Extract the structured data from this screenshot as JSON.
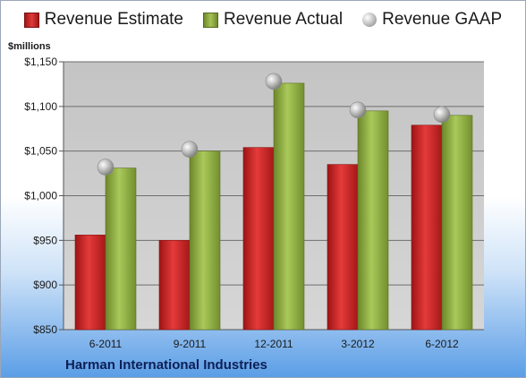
{
  "chart_data": {
    "type": "bar",
    "title": "",
    "units_label": "$millions",
    "company": "Harman International Industries",
    "categories": [
      "6-2011",
      "9-2011",
      "12-2011",
      "3-2012",
      "6-2012"
    ],
    "series": [
      {
        "name": "Revenue Estimate",
        "type": "bar",
        "values": [
          956,
          950,
          1054,
          1035,
          1079
        ]
      },
      {
        "name": "Revenue Actual",
        "type": "bar",
        "values": [
          1031,
          1050,
          1126,
          1095,
          1090
        ]
      },
      {
        "name": "Revenue GAAP",
        "type": "marker",
        "values": [
          1032,
          1052,
          1128,
          1096,
          1091
        ]
      }
    ],
    "ylim": [
      850,
      1150
    ],
    "yticks": [
      850,
      900,
      950,
      1000,
      1050,
      1100,
      1150
    ],
    "ytick_labels": [
      "$850",
      "$900",
      "$950",
      "$1,000",
      "$1,050",
      "$1,100",
      "$1,150"
    ],
    "legend_position": "top",
    "grid": true,
    "colors": {
      "estimate": "#d42a2a",
      "actual": "#94b24a",
      "gaap": "#b0b0b0",
      "plot_background": "#c8c8c8"
    }
  }
}
